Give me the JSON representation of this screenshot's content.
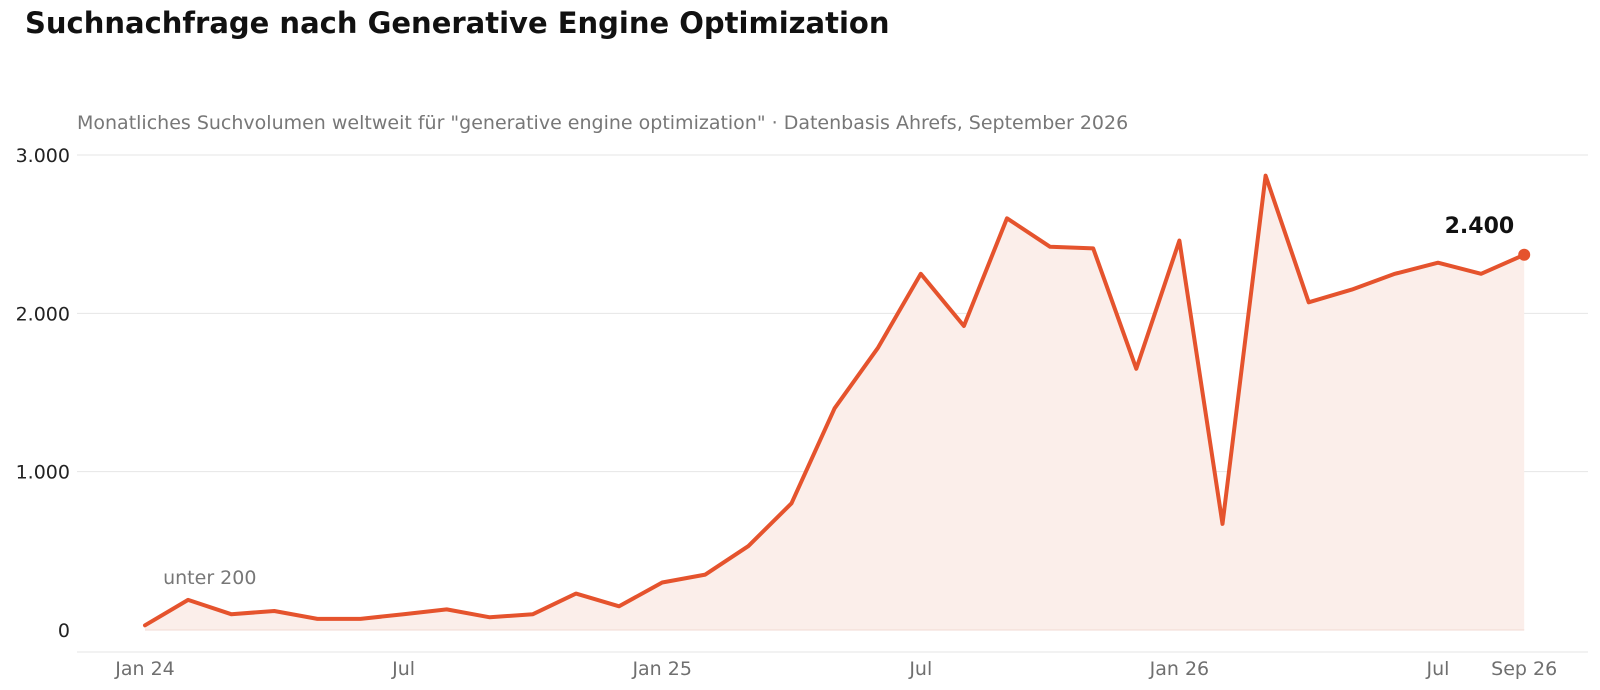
{
  "chart_data": {
    "type": "area",
    "title": "Suchnachfrage nach Generative Engine Optimization",
    "subtitle": "Monatliches Suchvolumen weltweit für \"generative engine optimization\" · Datenbasis Ahrefs, September 2026",
    "xlabel": "",
    "ylabel": "",
    "ylim": [
      0,
      3000
    ],
    "yticks": [
      0,
      1000,
      2000,
      3000
    ],
    "ytick_labels": [
      "0",
      "1.000",
      "2.000",
      "3.000"
    ],
    "grid": true,
    "x_ticks": [
      {
        "month": "2024-01",
        "label": "Jan 24"
      },
      {
        "month": "2024-07",
        "label": "Jul"
      },
      {
        "month": "2025-01",
        "label": "Jan 25"
      },
      {
        "month": "2025-07",
        "label": "Jul"
      },
      {
        "month": "2026-01",
        "label": "Jan 26"
      },
      {
        "month": "2026-07",
        "label": "Jul"
      },
      {
        "month": "2026-09",
        "label": "Sep 26"
      }
    ],
    "months": [
      "2024-01",
      "2024-02",
      "2024-03",
      "2024-04",
      "2024-05",
      "2024-06",
      "2024-07",
      "2024-08",
      "2024-09",
      "2024-10",
      "2024-11",
      "2024-12",
      "2025-01",
      "2025-02",
      "2025-03",
      "2025-04",
      "2025-05",
      "2025-06",
      "2025-07",
      "2025-08",
      "2025-09",
      "2025-10",
      "2025-11",
      "2025-12",
      "2026-01",
      "2026-02",
      "2026-03",
      "2026-04",
      "2026-05",
      "2026-06",
      "2026-07",
      "2026-08",
      "2026-09"
    ],
    "values": [
      30,
      190,
      100,
      120,
      70,
      70,
      100,
      130,
      80,
      100,
      230,
      150,
      300,
      350,
      530,
      800,
      1400,
      1780,
      2250,
      1920,
      2600,
      2420,
      2410,
      1650,
      2460,
      670,
      2870,
      2070,
      2150,
      2250,
      2320,
      2250,
      2370
    ],
    "annotations": [
      {
        "text": "unter 200",
        "month": "2024-02"
      }
    ],
    "end_label": "2.400",
    "colors": {
      "line": "#e5532d",
      "fill": "#fbeeea",
      "grid": "#e6e6e6"
    }
  }
}
